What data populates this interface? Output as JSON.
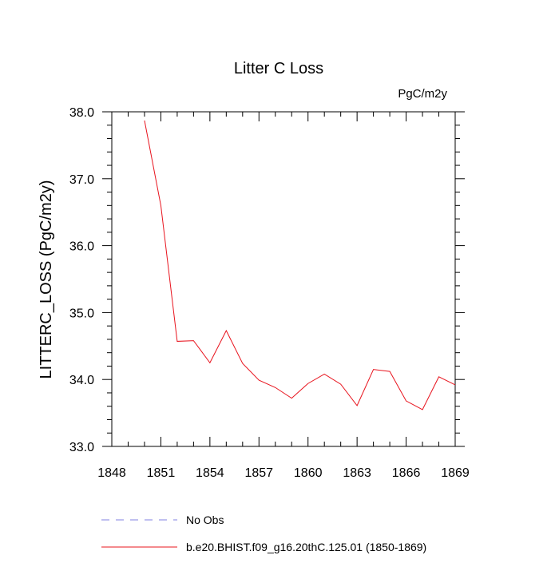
{
  "chart_data": {
    "type": "line",
    "title": "Litter C Loss",
    "units": "PgC/m2y",
    "ylabel": "LITTERC_LOSS  (PgC/m2y)",
    "xlabel": "",
    "xlim": [
      1848,
      1869
    ],
    "ylim": [
      33.0,
      38.0
    ],
    "x_ticks": [
      1848,
      1851,
      1854,
      1857,
      1860,
      1863,
      1866,
      1869
    ],
    "x_tick_labels": [
      "1848",
      "1851",
      "1854",
      "1857",
      "1860",
      "1863",
      "1866",
      "1869"
    ],
    "y_ticks": [
      33.0,
      34.0,
      35.0,
      36.0,
      37.0,
      38.0
    ],
    "y_tick_labels": [
      "33.0",
      "34.0",
      "35.0",
      "36.0",
      "37.0",
      "38.0"
    ],
    "grid": false,
    "series": [
      {
        "name": "b.e20.BHIST.f09_g16.20thC.125.01 (1850-1869)",
        "color": "#e8141e",
        "style": "solid",
        "x": [
          1850,
          1851,
          1852,
          1853,
          1854,
          1855,
          1856,
          1857,
          1858,
          1859,
          1860,
          1861,
          1862,
          1863,
          1864,
          1865,
          1866,
          1867,
          1868,
          1869
        ],
        "y": [
          37.87,
          36.6,
          34.57,
          34.58,
          34.25,
          34.73,
          34.24,
          33.99,
          33.88,
          33.72,
          33.94,
          34.08,
          33.93,
          33.61,
          34.15,
          34.12,
          33.68,
          33.55,
          34.04,
          33.92
        ]
      },
      {
        "name": "No Obs",
        "color": "#8080e0",
        "style": "dashed",
        "x": [],
        "y": []
      }
    ]
  }
}
